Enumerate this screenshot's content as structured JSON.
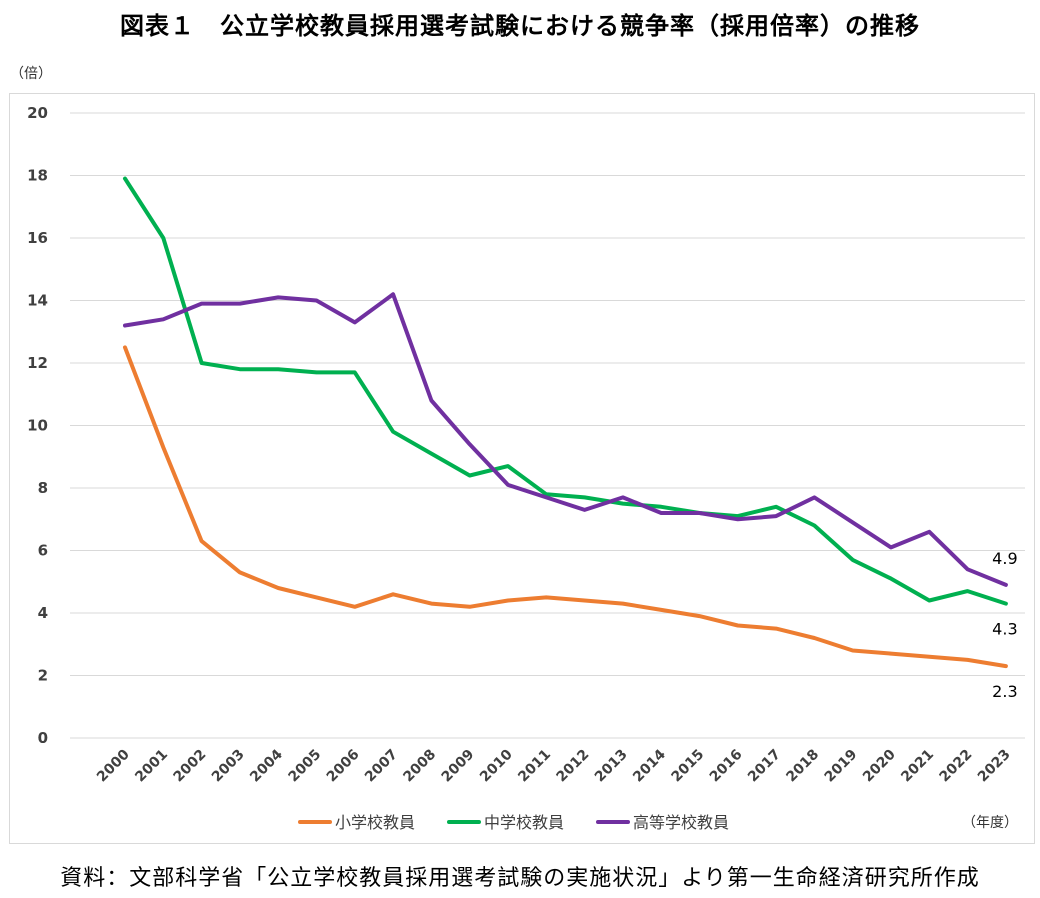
{
  "title": "図表１　公立学校教員採用選考試験における競争率（採用倍率）の推移",
  "source": "資料：文部科学省「公立学校教員採用選考試験の実施状況」より第一生命経済研究所作成",
  "chart_data": {
    "type": "line",
    "title": "図表１　公立学校教員採用選考試験における競争率（採用倍率）の推移",
    "ylabel": "（倍）",
    "xlabel": "（年度）",
    "ylim": [
      0,
      20
    ],
    "yticks": [
      0,
      2,
      4,
      6,
      8,
      10,
      12,
      14,
      16,
      18,
      20
    ],
    "grid": true,
    "legend_position": "bottom",
    "categories": [
      "2000",
      "2001",
      "2002",
      "2003",
      "2004",
      "2005",
      "2006",
      "2007",
      "2008",
      "2009",
      "2010",
      "2011",
      "2012",
      "2013",
      "2014",
      "2015",
      "2016",
      "2017",
      "2018",
      "2019",
      "2020",
      "2021",
      "2022",
      "2023"
    ],
    "series": [
      {
        "name": "小学校教員",
        "color": "#ED7D31",
        "values": [
          12.5,
          9.3,
          6.3,
          5.3,
          4.8,
          4.5,
          4.2,
          4.6,
          4.3,
          4.2,
          4.4,
          4.5,
          4.4,
          4.3,
          4.1,
          3.9,
          3.6,
          3.5,
          3.2,
          2.8,
          2.7,
          2.6,
          2.5,
          2.3
        ],
        "end_label": "2.3"
      },
      {
        "name": "中学校教員",
        "color": "#00B050",
        "values": [
          17.9,
          16.0,
          12.0,
          11.8,
          11.8,
          11.7,
          11.7,
          9.8,
          9.1,
          8.4,
          8.7,
          7.8,
          7.7,
          7.5,
          7.4,
          7.2,
          7.1,
          7.4,
          6.8,
          5.7,
          5.1,
          4.4,
          4.7,
          4.3
        ],
        "end_label": "4.3"
      },
      {
        "name": "高等学校教員",
        "color": "#7030A0",
        "values": [
          13.2,
          13.4,
          13.9,
          13.9,
          14.1,
          14.0,
          13.3,
          14.2,
          10.8,
          9.4,
          8.1,
          7.7,
          7.3,
          7.7,
          7.2,
          7.2,
          7.0,
          7.1,
          7.7,
          6.9,
          6.1,
          6.6,
          5.4,
          4.9
        ],
        "end_label": "4.9"
      }
    ]
  }
}
